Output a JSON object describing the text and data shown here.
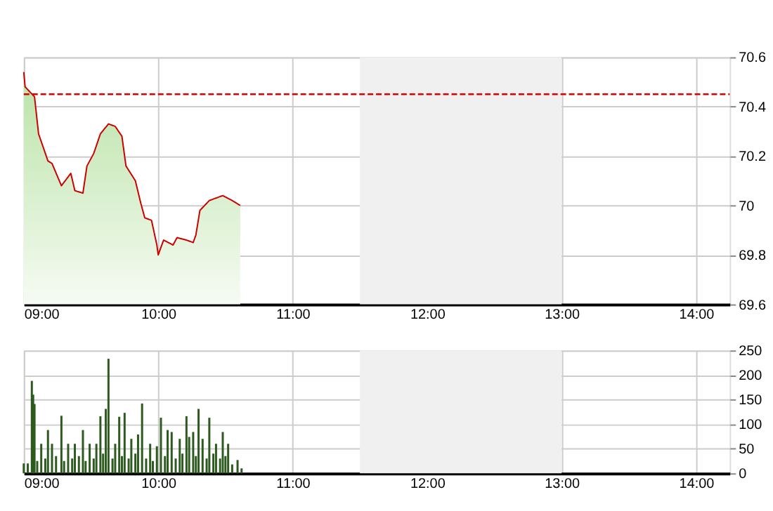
{
  "chart_data": [
    {
      "type": "area",
      "x": [
        9.0,
        9.01,
        9.08,
        9.11,
        9.18,
        9.21,
        9.28,
        9.35,
        9.38,
        9.44,
        9.47,
        9.52,
        9.57,
        9.63,
        9.68,
        9.73,
        9.76,
        9.83,
        9.87,
        9.9,
        9.95,
        9.99,
        10.0,
        10.04,
        10.11,
        10.14,
        10.21,
        10.26,
        10.28,
        10.31,
        10.38,
        10.48,
        10.55,
        10.61
      ],
      "series": [
        {
          "color": "#cc0000",
          "values": [
            70.54,
            70.48,
            70.44,
            70.29,
            70.18,
            70.17,
            70.08,
            70.13,
            70.06,
            70.05,
            70.16,
            70.21,
            70.29,
            70.33,
            70.32,
            70.28,
            70.16,
            70.1,
            70.01,
            69.95,
            69.94,
            69.84,
            69.8,
            69.86,
            69.84,
            69.87,
            69.86,
            69.85,
            69.88,
            69.98,
            70.02,
            70.04,
            70.02,
            70.0
          ]
        }
      ],
      "xlim": [
        9,
        14.25
      ],
      "xticks": [
        {
          "value": 9,
          "label": "09:00"
        },
        {
          "value": 10,
          "label": "10:00"
        },
        {
          "value": 11,
          "label": "11:00"
        },
        {
          "value": 12,
          "label": "12:00"
        },
        {
          "value": 13,
          "label": "13:00"
        },
        {
          "value": 14,
          "label": "14:00"
        }
      ],
      "ylim": [
        69.6,
        70.6
      ],
      "yticks": [
        69.6,
        69.8,
        70,
        70.2,
        70.4,
        70.6
      ],
      "ref_lines": [
        {
          "axis": "y",
          "value": 70.45,
          "color": "#dd0000",
          "line_style": "dashed"
        }
      ],
      "bands": [
        {
          "axis": "x",
          "from": 11.5,
          "to": 13,
          "color": "#f0f0f0"
        }
      ],
      "grid": true
    },
    {
      "type": "bar",
      "x": [
        9.0,
        9.03,
        9.06,
        9.07,
        9.08,
        9.1,
        9.13,
        9.16,
        9.18,
        9.21,
        9.24,
        9.28,
        9.3,
        9.33,
        9.36,
        9.38,
        9.41,
        9.44,
        9.46,
        9.49,
        9.52,
        9.54,
        9.57,
        9.59,
        9.61,
        9.63,
        9.66,
        9.68,
        9.71,
        9.73,
        9.75,
        9.78,
        9.8,
        9.83,
        9.85,
        9.88,
        9.91,
        9.94,
        9.96,
        9.99,
        10.02,
        10.05,
        10.07,
        10.1,
        10.13,
        10.16,
        10.18,
        10.21,
        10.23,
        10.26,
        10.28,
        10.3,
        10.33,
        10.36,
        10.38,
        10.41,
        10.43,
        10.46,
        10.48,
        10.5,
        10.52,
        10.55,
        10.59,
        10.62
      ],
      "series": [
        {
          "color": "#2d5a1e",
          "values": [
            20,
            20,
            188,
            160,
            141,
            25,
            60,
            30,
            88,
            60,
            35,
            117,
            25,
            60,
            30,
            60,
            35,
            88,
            25,
            60,
            30,
            60,
            116,
            40,
            131,
            233,
            30,
            60,
            115,
            35,
            123,
            30,
            70,
            40,
            79,
            142,
            30,
            60,
            25,
            55,
            113,
            35,
            88,
            84,
            30,
            70,
            40,
            116,
            74,
            84,
            35,
            131,
            70,
            30,
            113,
            40,
            60,
            30,
            84,
            35,
            60,
            18,
            27,
            10
          ]
        }
      ],
      "xlim": [
        9,
        14.25
      ],
      "xticks": [
        {
          "value": 9,
          "label": "09:00"
        },
        {
          "value": 10,
          "label": "10:00"
        },
        {
          "value": 11,
          "label": "11:00"
        },
        {
          "value": 12,
          "label": "12:00"
        },
        {
          "value": 13,
          "label": "13:00"
        },
        {
          "value": 14,
          "label": "14:00"
        }
      ],
      "ylim": [
        0,
        250
      ],
      "yticks": [
        0,
        50,
        100,
        150,
        200,
        250
      ],
      "bands": [
        {
          "axis": "x",
          "from": 11.5,
          "to": 13,
          "color": "#f0f0f0"
        }
      ],
      "grid": true
    }
  ]
}
